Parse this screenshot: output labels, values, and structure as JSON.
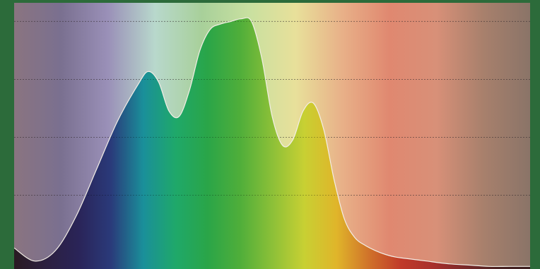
{
  "colors": {
    "frame": "#2c6b3a",
    "curve_stroke": "#f3eee6"
  },
  "chart_data": {
    "type": "area",
    "x": [
      0,
      0.04,
      0.08,
      0.12,
      0.16,
      0.2,
      0.24,
      0.26,
      0.28,
      0.3,
      0.32,
      0.34,
      0.36,
      0.38,
      0.4,
      0.42,
      0.44,
      0.46,
      0.48,
      0.5,
      0.52,
      0.54,
      0.56,
      0.58,
      0.6,
      0.62,
      0.64,
      0.66,
      0.68,
      0.7,
      0.72,
      0.74,
      0.76,
      0.8,
      0.84,
      0.88,
      0.92,
      0.96,
      1.0
    ],
    "y": [
      0.08,
      0.03,
      0.07,
      0.2,
      0.38,
      0.56,
      0.7,
      0.75,
      0.71,
      0.6,
      0.58,
      0.68,
      0.83,
      0.91,
      0.93,
      0.94,
      0.95,
      0.94,
      0.8,
      0.58,
      0.47,
      0.49,
      0.6,
      0.63,
      0.53,
      0.34,
      0.19,
      0.12,
      0.09,
      0.07,
      0.055,
      0.045,
      0.04,
      0.03,
      0.02,
      0.015,
      0.01,
      0.01,
      0.01
    ],
    "xlim": [
      0,
      1
    ],
    "ylim": [
      0,
      1
    ],
    "grid": true,
    "gridlines_y": [
      0.28,
      0.5,
      0.72,
      0.94
    ],
    "fill": "visible-spectrum-gradient",
    "spectrum_colors": [
      "#2a1a22",
      "#2c2040",
      "#2a2458",
      "#2a3a7a",
      "#1a8f9a",
      "#1fa86a",
      "#2aa548",
      "#4fae3a",
      "#8cc038",
      "#c8d033",
      "#e0b52a",
      "#d0722a",
      "#c03a2a",
      "#a8302c",
      "#7a2a2a",
      "#4a2222",
      "#3a1e20"
    ],
    "background_colors": [
      "#8a7480",
      "#7a7090",
      "#9a90b8",
      "#b8d8cc",
      "#a8d09a",
      "#c8e0a0",
      "#e8e09a",
      "#e8b088",
      "#e08870",
      "#d89078",
      "#a8806c",
      "#8a7468"
    ]
  }
}
